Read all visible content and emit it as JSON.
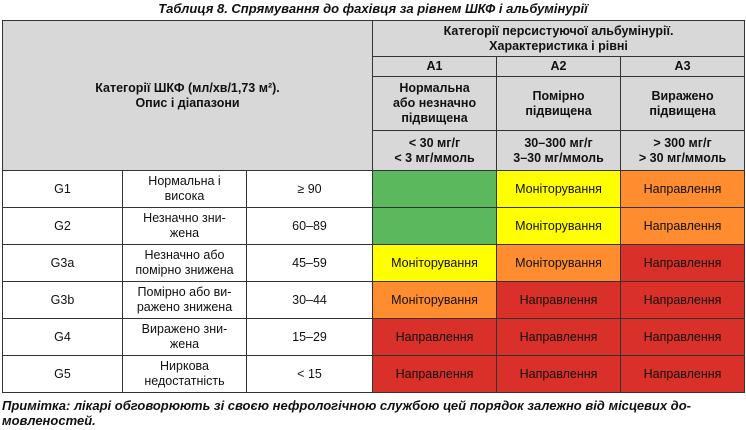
{
  "caption": "Таблиця 8. Спрямування до фахівця за рівнем ШКФ і альбумінурії",
  "header": {
    "gfr_title_line1": "Категорії ШКФ (мл/хв/1,73 м²).",
    "gfr_title_line2": "Опис і діапазони",
    "alb_title_line1": "Категорії персистуючої альбумінурії.",
    "alb_title_line2": "Характеристика і рівні",
    "columns": [
      {
        "code": "A1",
        "desc_line1": "Нормальна",
        "desc_line2": "або незначно",
        "desc_line3": "підвищена",
        "range_line1": "< 30 мг/г",
        "range_line2": "< 3 мг/ммоль"
      },
      {
        "code": "A2",
        "desc_line1": "Помірно",
        "desc_line2": "підвищена",
        "desc_line3": "",
        "range_line1": "30–300 мг/г",
        "range_line2": "3–30 мг/ммоль"
      },
      {
        "code": "A3",
        "desc_line1": "Виражено",
        "desc_line2": "підвищена",
        "desc_line3": "",
        "range_line1": "> 300 мг/г",
        "range_line2": "> 30 мг/ммоль"
      }
    ]
  },
  "rows": [
    {
      "code": "G1",
      "desc_line1": "Нормальна і",
      "desc_line2": "висока",
      "range": "≥ 90",
      "a1": "",
      "a2": "Моніторування",
      "a3": "Направлення"
    },
    {
      "code": "G2",
      "desc_line1": "Незначно зни-",
      "desc_line2": "жена",
      "range": "60–89",
      "a1": "",
      "a2": "Моніторування",
      "a3": "Направлення"
    },
    {
      "code": "G3a",
      "desc_line1": "Незначно або",
      "desc_line2": "помірно знижена",
      "range": "45–59",
      "a1": "Моніторування",
      "a2": "Моніторування",
      "a3": "Направлення"
    },
    {
      "code": "G3b",
      "desc_line1": "Помірно або ви-",
      "desc_line2": "ражено знижена",
      "range": "30–44",
      "a1": "Моніторування",
      "a2": "Направлення",
      "a3": "Направлення"
    },
    {
      "code": "G4",
      "desc_line1": "Виражено зни-",
      "desc_line2": "жена",
      "range": "15–29",
      "a1": "Направлення",
      "a2": "Направлення",
      "a3": "Направлення"
    },
    {
      "code": "G5",
      "desc_line1": "Ниркова",
      "desc_line2": "недостатність",
      "range": "< 15",
      "a1": "Направлення",
      "a2": "Направлення",
      "a3": "Направлення"
    }
  ],
  "note_line1": "Примітка: лікарі обговорюють зі своєю нефрологічною службою цей порядок залежно від місцевих до-",
  "note_line2": "мовленостей.",
  "colors": {
    "green": "#5cb85c",
    "yellow": "#ffff00",
    "orange": "#ff8c2e",
    "red": "#d9302a",
    "header": "#d8d8d8"
  }
}
